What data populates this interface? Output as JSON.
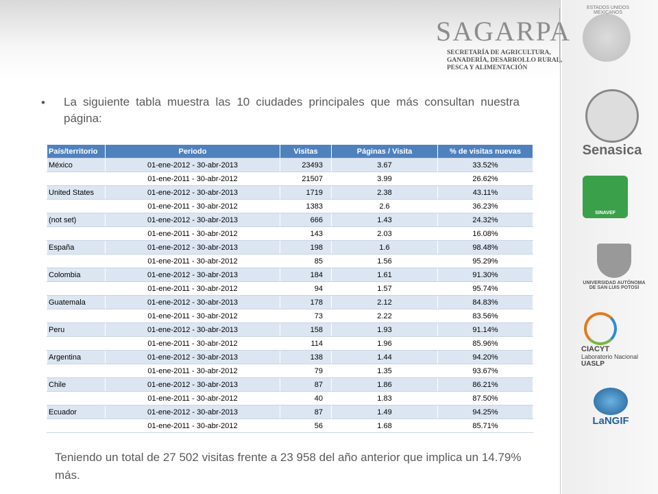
{
  "header": {
    "logo": "SAGARPA",
    "subtitle": [
      "SECRETARÍA DE AGRICULTURA,",
      "GANADERÍA, DESARROLLO RURAL,",
      "PESCA Y ALIMENTACIÓN"
    ],
    "seal": "ESTADOS UNIDOS MEXICANOS"
  },
  "intro": "La siguiente tabla muestra las 10 ciudades principales que más consultan nuestra página:",
  "table": {
    "columns": [
      "País/territorio",
      "Periodo",
      "Visitas",
      "Páginas / Visita",
      "% de visitas nuevas"
    ],
    "rows": [
      [
        "México",
        "01-ene-2012 - 30-abr-2013",
        "23493",
        "3.67",
        "33.52%"
      ],
      [
        null,
        "01-ene-2011 - 30-abr-2012",
        "21507",
        "3.99",
        "26.62%"
      ],
      [
        "United States",
        "01-ene-2012 - 30-abr-2013",
        "1719",
        "2.38",
        "43.11%"
      ],
      [
        null,
        "01-ene-2011 - 30-abr-2012",
        "1383",
        "2.6",
        "36.23%"
      ],
      [
        "(not set)",
        "01-ene-2012 - 30-abr-2013",
        "666",
        "1.43",
        "24.32%"
      ],
      [
        null,
        "01-ene-2011 - 30-abr-2012",
        "143",
        "2.03",
        "16.08%"
      ],
      [
        "España",
        "01-ene-2012 - 30-abr-2013",
        "198",
        "1.6",
        "98.48%"
      ],
      [
        null,
        "01-ene-2011 - 30-abr-2012",
        "85",
        "1.56",
        "95.29%"
      ],
      [
        "Colombia",
        "01-ene-2012 - 30-abr-2013",
        "184",
        "1.61",
        "91.30%"
      ],
      [
        null,
        "01-ene-2011 - 30-abr-2012",
        "94",
        "1.57",
        "95.74%"
      ],
      [
        "Guatemala",
        "01-ene-2012 - 30-abr-2013",
        "178",
        "2.12",
        "84.83%"
      ],
      [
        null,
        "01-ene-2011 - 30-abr-2012",
        "73",
        "2.22",
        "83.56%"
      ],
      [
        "Peru",
        "01-ene-2012 - 30-abr-2013",
        "158",
        "1.93",
        "91.14%"
      ],
      [
        null,
        "01-ene-2011 - 30-abr-2012",
        "114",
        "1.96",
        "85.96%"
      ],
      [
        "Argentina",
        "01-ene-2012 - 30-abr-2013",
        "138",
        "1.44",
        "94.20%"
      ],
      [
        null,
        "01-ene-2011 - 30-abr-2012",
        "79",
        "1.35",
        "93.67%"
      ],
      [
        "Chile",
        "01-ene-2012 - 30-abr-2013",
        "87",
        "1.86",
        "86.21%"
      ],
      [
        null,
        "01-ene-2011 - 30-abr-2012",
        "40",
        "1.83",
        "87.50%"
      ],
      [
        "Ecuador",
        "01-ene-2012 - 30-abr-2013",
        "87",
        "1.49",
        "94.25%"
      ],
      [
        null,
        "01-ene-2011 - 30-abr-2012",
        "56",
        "1.68",
        "85.71%"
      ]
    ]
  },
  "summary": "Teniendo un total de 27 502 visitas  frente a 23 958 del año anterior que implica un 14.79% más.",
  "sidebar": {
    "senasica": "Senasica",
    "sinavef": "SINAVEF",
    "uaslp": [
      "UNIVERSIDAD AUTÓNOMA",
      "DE SAN LUIS POTOSÍ"
    ],
    "ciacyt": [
      "CIACYT",
      "Laboratorio Nacional",
      "UASLP"
    ],
    "langif": "LaNGIF"
  }
}
